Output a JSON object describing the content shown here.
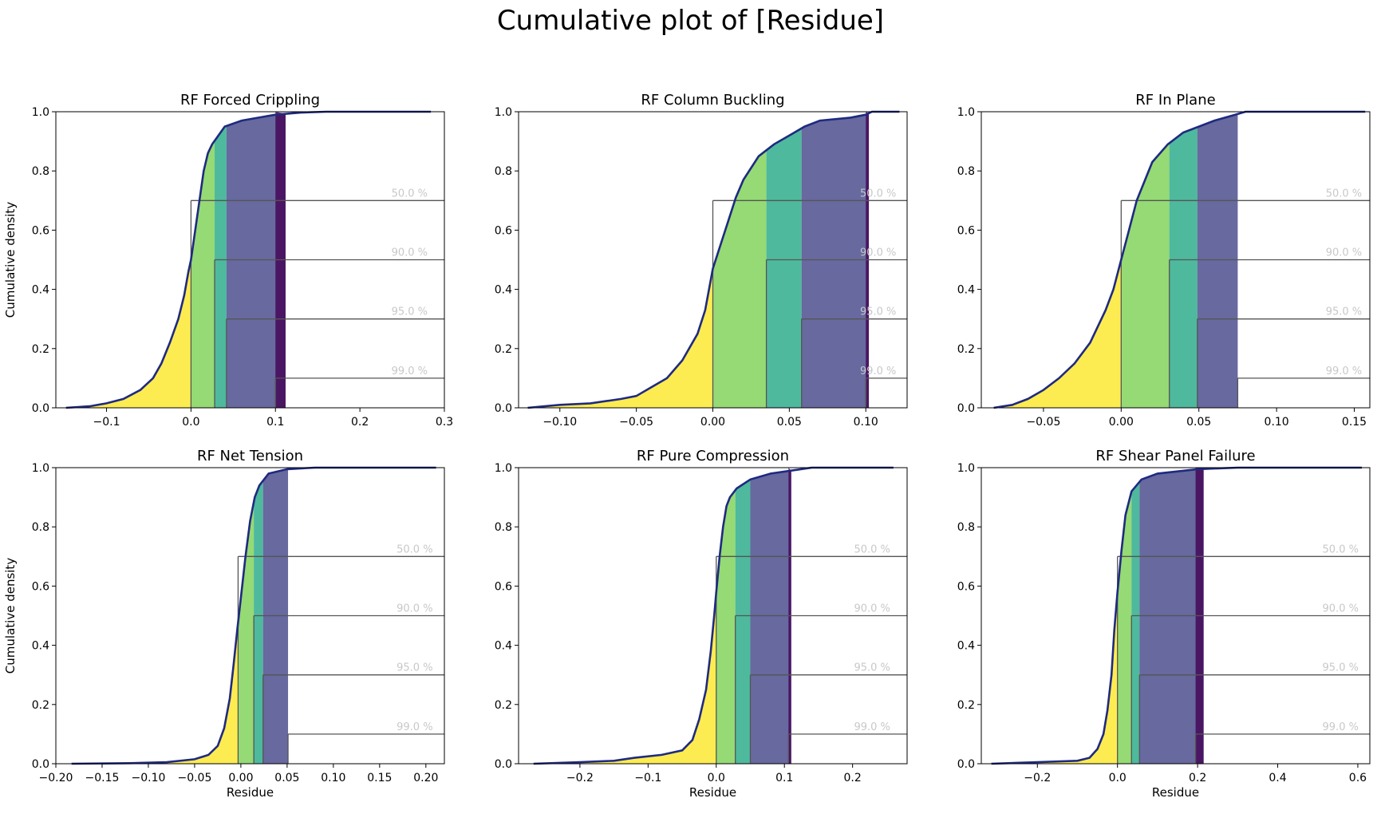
{
  "figure": {
    "title": "Cumulative plot of [Residue]"
  },
  "colors": {
    "band": [
      "#fde725",
      "#7ad151",
      "#22a884",
      "#414487",
      "#440154"
    ],
    "band_opacity": 0.8,
    "curve": "#1f2a80",
    "marker_line": "#555555",
    "marker_text": "#c8c8c8"
  },
  "percent_labels": [
    "50.0 %",
    "90.0 %",
    "95.0 %",
    "99.0 %"
  ],
  "marker_levels": [
    0.7,
    0.5,
    0.3,
    0.1
  ],
  "chart_data": [
    {
      "type": "line",
      "title": "RF Forced Crippling",
      "xlabel": "",
      "ylabel": "Cumulative density",
      "xlim": [
        -0.16,
        0.3
      ],
      "ylim": [
        0,
        1
      ],
      "xticks": [
        -0.1,
        0.0,
        0.1,
        0.2,
        0.3
      ],
      "xtick_labels": [
        "−0.1",
        "0.0",
        "0.1",
        "0.2",
        "0.3"
      ],
      "yticks": [
        0.0,
        0.2,
        0.4,
        0.6,
        0.8,
        1.0
      ],
      "ytick_labels": [
        "0.0",
        "0.2",
        "0.4",
        "0.6",
        "0.8",
        "1.0"
      ],
      "data_max": 0.284,
      "percentiles": [
        0.0,
        0.028,
        0.042,
        0.1,
        0.112
      ],
      "curve": [
        [
          -0.148,
          0
        ],
        [
          -0.12,
          0.005
        ],
        [
          -0.1,
          0.015
        ],
        [
          -0.08,
          0.03
        ],
        [
          -0.06,
          0.06
        ],
        [
          -0.045,
          0.1
        ],
        [
          -0.035,
          0.15
        ],
        [
          -0.025,
          0.22
        ],
        [
          -0.015,
          0.3
        ],
        [
          -0.008,
          0.38
        ],
        [
          -0.003,
          0.46
        ],
        [
          0.0,
          0.5
        ],
        [
          0.005,
          0.6
        ],
        [
          0.01,
          0.7
        ],
        [
          0.015,
          0.8
        ],
        [
          0.02,
          0.86
        ],
        [
          0.025,
          0.89
        ],
        [
          0.03,
          0.91
        ],
        [
          0.04,
          0.95
        ],
        [
          0.06,
          0.97
        ],
        [
          0.08,
          0.98
        ],
        [
          0.1,
          0.99
        ],
        [
          0.13,
          0.997
        ],
        [
          0.16,
          1.0
        ],
        [
          0.284,
          1.0
        ]
      ]
    },
    {
      "type": "line",
      "title": "RF Column Buckling",
      "xlabel": "",
      "ylabel": "",
      "xlim": [
        -0.127,
        0.127
      ],
      "ylim": [
        0,
        1
      ],
      "xticks": [
        -0.1,
        -0.05,
        0.0,
        0.05,
        0.1
      ],
      "xtick_labels": [
        "−0.10",
        "−0.05",
        "0.00",
        "0.05",
        "0.10"
      ],
      "yticks": [
        0.0,
        0.2,
        0.4,
        0.6,
        0.8,
        1.0
      ],
      "ytick_labels": [
        "0.0",
        "0.2",
        "0.4",
        "0.6",
        "0.8",
        "1.0"
      ],
      "data_max": 0.122,
      "percentiles": [
        0.0,
        0.035,
        0.058,
        0.1,
        0.102
      ],
      "curve": [
        [
          -0.121,
          0
        ],
        [
          -0.1,
          0.01
        ],
        [
          -0.08,
          0.015
        ],
        [
          -0.06,
          0.03
        ],
        [
          -0.05,
          0.04
        ],
        [
          -0.04,
          0.07
        ],
        [
          -0.03,
          0.1
        ],
        [
          -0.02,
          0.16
        ],
        [
          -0.01,
          0.25
        ],
        [
          -0.005,
          0.33
        ],
        [
          0.0,
          0.47
        ],
        [
          0.005,
          0.55
        ],
        [
          0.01,
          0.63
        ],
        [
          0.015,
          0.71
        ],
        [
          0.02,
          0.77
        ],
        [
          0.03,
          0.85
        ],
        [
          0.04,
          0.89
        ],
        [
          0.05,
          0.92
        ],
        [
          0.06,
          0.95
        ],
        [
          0.07,
          0.97
        ],
        [
          0.09,
          0.98
        ],
        [
          0.1,
          0.99
        ],
        [
          0.104,
          1.0
        ],
        [
          0.122,
          1.0
        ]
      ]
    },
    {
      "type": "line",
      "title": "RF In Plane",
      "xlabel": "",
      "ylabel": "",
      "xlim": [
        -0.09,
        0.16
      ],
      "ylim": [
        0,
        1
      ],
      "xticks": [
        -0.05,
        0.0,
        0.05,
        0.1,
        0.15
      ],
      "xtick_labels": [
        "−0.05",
        "0.00",
        "0.05",
        "0.10",
        "0.15"
      ],
      "yticks": [
        0.0,
        0.2,
        0.4,
        0.6,
        0.8,
        1.0
      ],
      "ytick_labels": [
        "0.0",
        "0.2",
        "0.4",
        "0.6",
        "0.8",
        "1.0"
      ],
      "data_max": 0.157,
      "percentiles": [
        0.0,
        0.031,
        0.049,
        0.075,
        0.075
      ],
      "curve": [
        [
          -0.082,
          0
        ],
        [
          -0.07,
          0.01
        ],
        [
          -0.06,
          0.03
        ],
        [
          -0.05,
          0.06
        ],
        [
          -0.04,
          0.1
        ],
        [
          -0.03,
          0.15
        ],
        [
          -0.02,
          0.22
        ],
        [
          -0.01,
          0.33
        ],
        [
          -0.005,
          0.4
        ],
        [
          0.0,
          0.5
        ],
        [
          0.005,
          0.6
        ],
        [
          0.01,
          0.7
        ],
        [
          0.02,
          0.83
        ],
        [
          0.03,
          0.89
        ],
        [
          0.04,
          0.93
        ],
        [
          0.05,
          0.95
        ],
        [
          0.06,
          0.97
        ],
        [
          0.07,
          0.985
        ],
        [
          0.08,
          1.0
        ],
        [
          0.157,
          1.0
        ]
      ]
    },
    {
      "type": "line",
      "title": "RF Net Tension",
      "xlabel": "Residue",
      "ylabel": "Cumulative density",
      "xlim": [
        -0.2,
        0.22
      ],
      "ylim": [
        0,
        1
      ],
      "xticks": [
        -0.2,
        -0.15,
        -0.1,
        -0.05,
        0.0,
        0.05,
        0.1,
        0.15,
        0.2
      ],
      "xtick_labels": [
        "−0.20",
        "−0.15",
        "−0.10",
        "−0.05",
        "0.00",
        "0.05",
        "0.10",
        "0.15",
        "0.20"
      ],
      "yticks": [
        0.0,
        0.2,
        0.4,
        0.6,
        0.8,
        1.0
      ],
      "ytick_labels": [
        "0.0",
        "0.2",
        "0.4",
        "0.6",
        "0.8",
        "1.0"
      ],
      "data_max": 0.211,
      "percentiles": [
        -0.003,
        0.014,
        0.024,
        0.051,
        0.051
      ],
      "curve": [
        [
          -0.183,
          0
        ],
        [
          -0.12,
          0.002
        ],
        [
          -0.08,
          0.005
        ],
        [
          -0.05,
          0.015
        ],
        [
          -0.035,
          0.03
        ],
        [
          -0.025,
          0.06
        ],
        [
          -0.018,
          0.12
        ],
        [
          -0.012,
          0.22
        ],
        [
          -0.008,
          0.33
        ],
        [
          -0.004,
          0.45
        ],
        [
          0.0,
          0.56
        ],
        [
          0.005,
          0.7
        ],
        [
          0.01,
          0.82
        ],
        [
          0.015,
          0.9
        ],
        [
          0.02,
          0.94
        ],
        [
          0.03,
          0.98
        ],
        [
          0.05,
          0.995
        ],
        [
          0.08,
          1.0
        ],
        [
          0.211,
          1.0
        ]
      ]
    },
    {
      "type": "line",
      "title": "RF Pure Compression",
      "xlabel": "Residue",
      "ylabel": "",
      "xlim": [
        -0.29,
        0.28
      ],
      "ylim": [
        0,
        1
      ],
      "xticks": [
        -0.2,
        -0.1,
        0.0,
        0.1,
        0.2
      ],
      "xtick_labels": [
        "−0.2",
        "−0.1",
        "0.0",
        "0.1",
        "0.2"
      ],
      "yticks": [
        0.0,
        0.2,
        0.4,
        0.6,
        0.8,
        1.0
      ],
      "ytick_labels": [
        "0.0",
        "0.2",
        "0.4",
        "0.6",
        "0.8",
        "1.0"
      ],
      "data_max": 0.26,
      "percentiles": [
        0.0,
        0.028,
        0.05,
        0.106,
        0.11
      ],
      "curve": [
        [
          -0.268,
          0
        ],
        [
          -0.2,
          0.005
        ],
        [
          -0.15,
          0.01
        ],
        [
          -0.12,
          0.02
        ],
        [
          -0.08,
          0.03
        ],
        [
          -0.05,
          0.045
        ],
        [
          -0.035,
          0.08
        ],
        [
          -0.025,
          0.15
        ],
        [
          -0.015,
          0.25
        ],
        [
          -0.008,
          0.38
        ],
        [
          -0.003,
          0.5
        ],
        [
          0.0,
          0.58
        ],
        [
          0.005,
          0.7
        ],
        [
          0.01,
          0.8
        ],
        [
          0.015,
          0.87
        ],
        [
          0.02,
          0.9
        ],
        [
          0.03,
          0.93
        ],
        [
          0.05,
          0.96
        ],
        [
          0.08,
          0.98
        ],
        [
          0.11,
          0.99
        ],
        [
          0.14,
          1.0
        ],
        [
          0.26,
          1.0
        ]
      ]
    },
    {
      "type": "line",
      "title": "RF Shear Panel Failure",
      "xlabel": "Residue",
      "ylabel": "",
      "xlim": [
        -0.34,
        0.63
      ],
      "ylim": [
        0,
        1
      ],
      "xticks": [
        -0.2,
        0.0,
        0.2,
        0.4,
        0.6
      ],
      "xtick_labels": [
        "−0.2",
        "0.0",
        "0.2",
        "0.4",
        "0.6"
      ],
      "yticks": [
        0.0,
        0.2,
        0.4,
        0.6,
        0.8,
        1.0
      ],
      "ytick_labels": [
        "0.0",
        "0.2",
        "0.4",
        "0.6",
        "0.8",
        "1.0"
      ],
      "data_max": 0.61,
      "percentiles": [
        0.0,
        0.035,
        0.055,
        0.195,
        0.215
      ],
      "curve": [
        [
          -0.315,
          0
        ],
        [
          -0.2,
          0.005
        ],
        [
          -0.1,
          0.01
        ],
        [
          -0.07,
          0.02
        ],
        [
          -0.05,
          0.05
        ],
        [
          -0.035,
          0.1
        ],
        [
          -0.025,
          0.18
        ],
        [
          -0.015,
          0.3
        ],
        [
          -0.008,
          0.45
        ],
        [
          0.0,
          0.58
        ],
        [
          0.01,
          0.72
        ],
        [
          0.02,
          0.84
        ],
        [
          0.035,
          0.92
        ],
        [
          0.06,
          0.96
        ],
        [
          0.1,
          0.98
        ],
        [
          0.2,
          0.995
        ],
        [
          0.3,
          1.0
        ],
        [
          0.61,
          1.0
        ]
      ]
    }
  ]
}
